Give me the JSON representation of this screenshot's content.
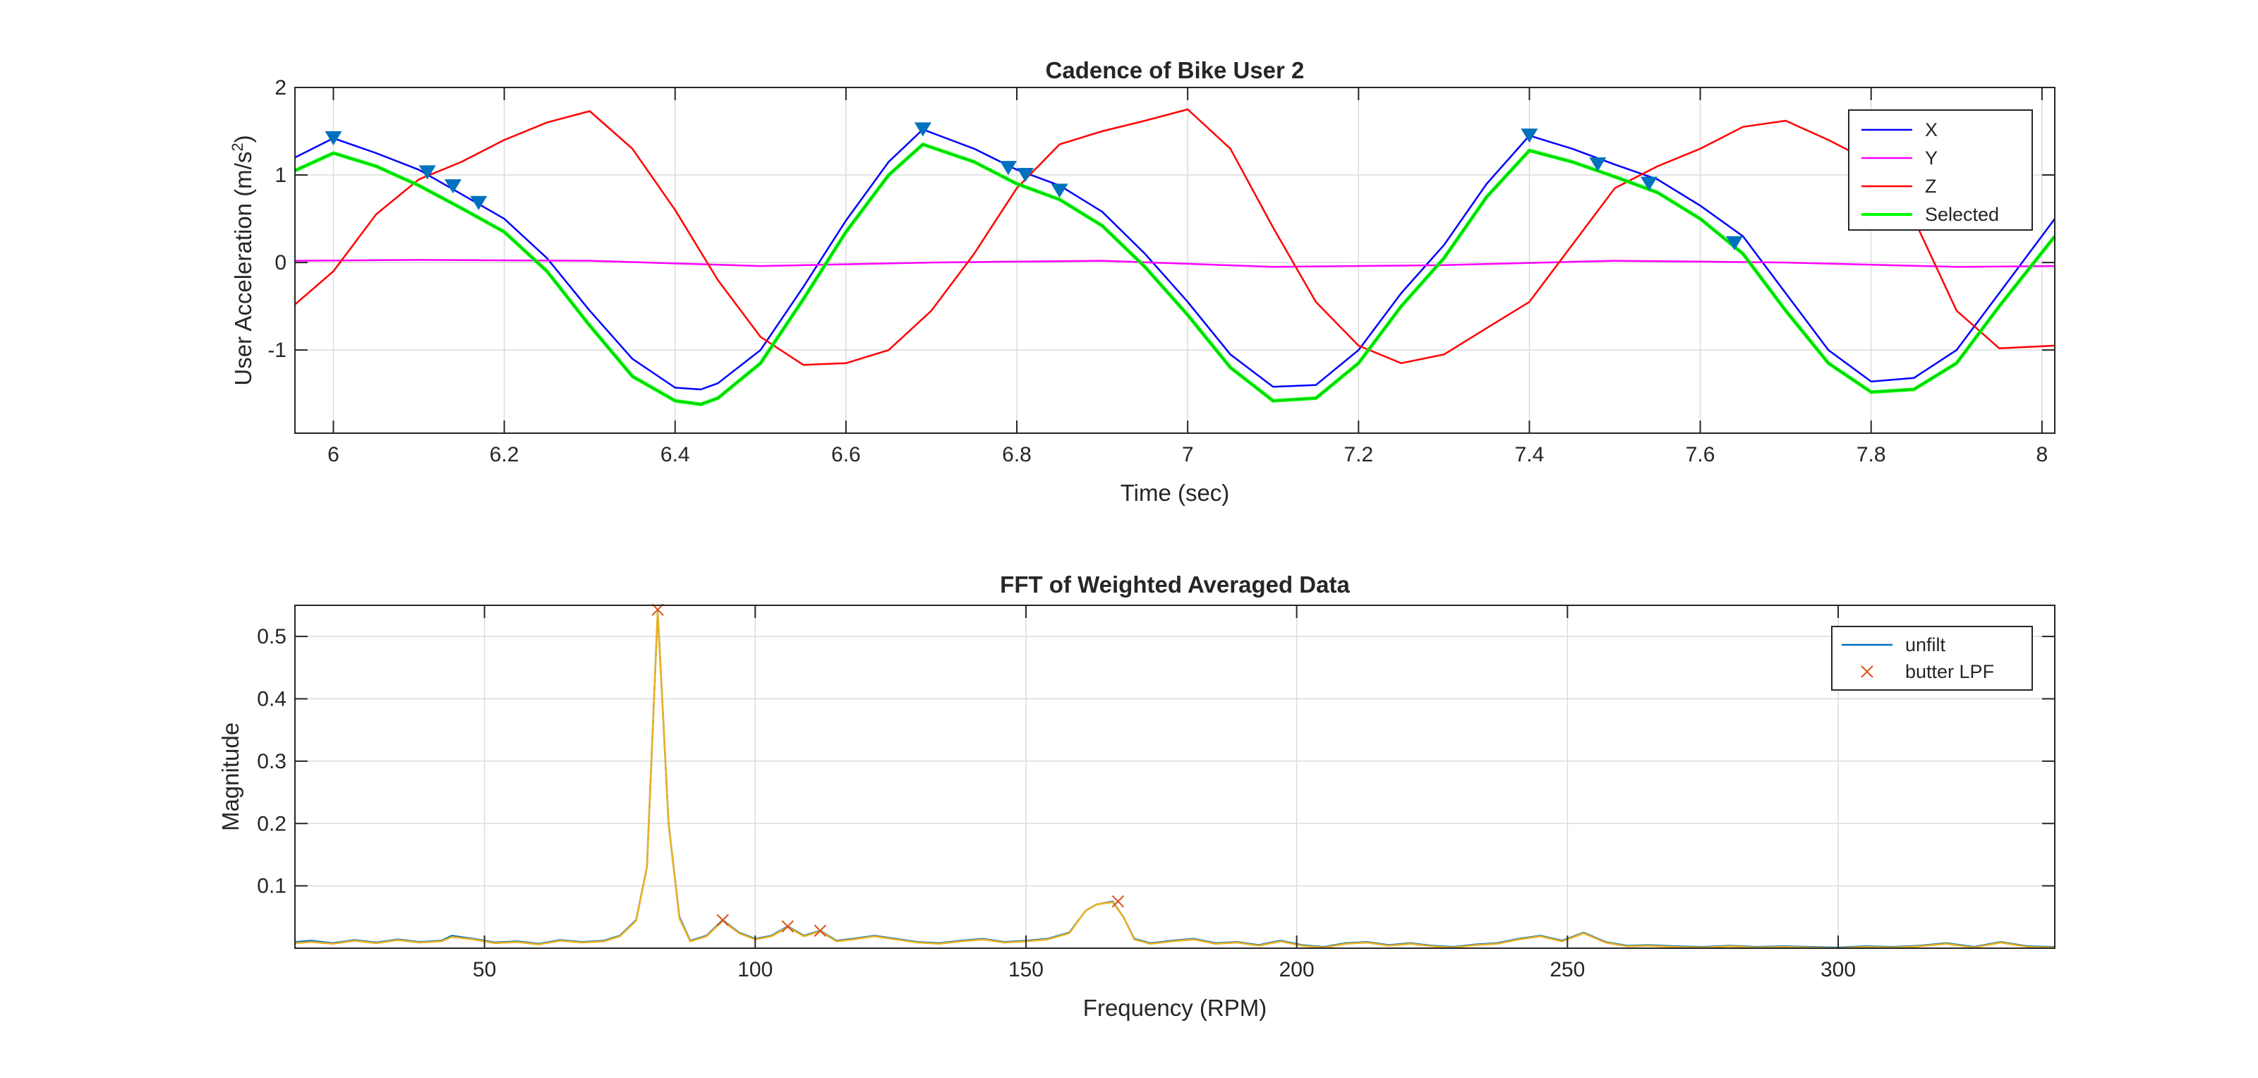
{
  "chart_data": [
    {
      "type": "line",
      "title": "Cadence of Bike User 2",
      "xlabel": "Time (sec)",
      "ylabel_main": "User Acceleration (m/s",
      "ylabel_sup": "2",
      "ylabel_close": ")",
      "xlim": [
        5.955,
        8.015
      ],
      "ylim": [
        -1.95,
        2.0
      ],
      "xticks": [
        6,
        6.2,
        6.4,
        6.6,
        6.8,
        7,
        7.2,
        7.4,
        7.6,
        7.8,
        8
      ],
      "xtick_labels": [
        "6",
        "6.2",
        "6.4",
        "6.6",
        "6.8",
        "7",
        "7.2",
        "7.4",
        "7.6",
        "7.8",
        "8"
      ],
      "yticks": [
        -1,
        0,
        1,
        2
      ],
      "ytick_labels": [
        "-1",
        "0",
        "1",
        "2"
      ],
      "grid": true,
      "legend_position": "top-right",
      "colors": {
        "X": "#0000ff",
        "Y": "#ff00ff",
        "Z": "#ff0000",
        "Selected": "#00ff00",
        "markers": "#0072bd"
      },
      "series": [
        {
          "name": "X",
          "color": "#0000ff",
          "x": [
            5.955,
            6.0,
            6.05,
            6.1,
            6.15,
            6.2,
            6.25,
            6.3,
            6.35,
            6.4,
            6.43,
            6.45,
            6.5,
            6.55,
            6.6,
            6.65,
            6.69,
            6.75,
            6.8,
            6.85,
            6.9,
            6.95,
            7.0,
            7.05,
            7.1,
            7.15,
            7.2,
            7.25,
            7.3,
            7.35,
            7.4,
            7.45,
            7.5,
            7.55,
            7.6,
            7.65,
            7.7,
            7.75,
            7.8,
            7.85,
            7.9,
            7.95,
            8.015
          ],
          "y": [
            1.2,
            1.42,
            1.25,
            1.06,
            0.78,
            0.5,
            0.05,
            -0.55,
            -1.1,
            -1.43,
            -1.45,
            -1.38,
            -1.0,
            -0.28,
            0.48,
            1.15,
            1.52,
            1.3,
            1.06,
            0.88,
            0.58,
            0.1,
            -0.45,
            -1.05,
            -1.42,
            -1.4,
            -1.0,
            -0.35,
            0.2,
            0.9,
            1.45,
            1.3,
            1.12,
            0.95,
            0.65,
            0.3,
            -0.35,
            -1.0,
            -1.36,
            -1.32,
            -1.0,
            -0.35,
            0.5
          ]
        },
        {
          "name": "Y",
          "color": "#ff00ff",
          "x": [
            5.955,
            6.1,
            6.3,
            6.5,
            6.7,
            6.9,
            7.1,
            7.3,
            7.5,
            7.7,
            7.9,
            8.015
          ],
          "y": [
            0.02,
            0.03,
            0.02,
            -0.04,
            0.0,
            0.02,
            -0.05,
            -0.03,
            0.02,
            0.0,
            -0.05,
            -0.04
          ]
        },
        {
          "name": "Z",
          "color": "#ff0000",
          "x": [
            5.955,
            6.0,
            6.05,
            6.1,
            6.15,
            6.2,
            6.25,
            6.3,
            6.35,
            6.4,
            6.45,
            6.5,
            6.55,
            6.6,
            6.65,
            6.7,
            6.75,
            6.8,
            6.85,
            6.9,
            6.95,
            7.0,
            7.05,
            7.1,
            7.15,
            7.2,
            7.25,
            7.3,
            7.35,
            7.4,
            7.45,
            7.5,
            7.55,
            7.6,
            7.65,
            7.7,
            7.75,
            7.8,
            7.85,
            7.9,
            7.95,
            8.015
          ],
          "y": [
            -0.48,
            -0.1,
            0.55,
            0.95,
            1.15,
            1.4,
            1.6,
            1.73,
            1.3,
            0.6,
            -0.2,
            -0.85,
            -1.17,
            -1.15,
            -1.0,
            -0.55,
            0.1,
            0.85,
            1.35,
            1.5,
            1.62,
            1.75,
            1.3,
            0.4,
            -0.45,
            -0.95,
            -1.15,
            -1.05,
            -0.75,
            -0.45,
            0.2,
            0.85,
            1.1,
            1.3,
            1.55,
            1.62,
            1.4,
            1.15,
            0.5,
            -0.55,
            -0.98,
            -0.95
          ]
        },
        {
          "name": "Selected",
          "color": "#00ff00",
          "x": [
            5.955,
            6.0,
            6.05,
            6.1,
            6.15,
            6.2,
            6.25,
            6.3,
            6.35,
            6.4,
            6.43,
            6.45,
            6.5,
            6.55,
            6.6,
            6.65,
            6.69,
            6.75,
            6.8,
            6.85,
            6.9,
            6.95,
            7.0,
            7.05,
            7.1,
            7.15,
            7.2,
            7.25,
            7.3,
            7.35,
            7.4,
            7.45,
            7.5,
            7.55,
            7.6,
            7.65,
            7.7,
            7.75,
            7.8,
            7.85,
            7.9,
            7.95,
            8.015
          ],
          "y": [
            1.05,
            1.25,
            1.1,
            0.88,
            0.62,
            0.35,
            -0.1,
            -0.72,
            -1.3,
            -1.58,
            -1.62,
            -1.55,
            -1.15,
            -0.42,
            0.35,
            1.0,
            1.35,
            1.15,
            0.9,
            0.72,
            0.42,
            -0.05,
            -0.6,
            -1.2,
            -1.58,
            -1.55,
            -1.15,
            -0.5,
            0.05,
            0.75,
            1.28,
            1.15,
            0.98,
            0.8,
            0.5,
            0.1,
            -0.55,
            -1.15,
            -1.48,
            -1.45,
            -1.15,
            -0.5,
            0.3
          ]
        }
      ],
      "markers": {
        "color": "#0072bd",
        "x": [
          6.0,
          6.11,
          6.14,
          6.17,
          6.69,
          6.79,
          6.81,
          6.85,
          7.4,
          7.48,
          7.54,
          7.64
        ],
        "y": [
          1.42,
          1.03,
          0.87,
          0.68,
          1.52,
          1.08,
          1.0,
          0.82,
          1.45,
          1.12,
          0.9,
          0.22
        ]
      }
    },
    {
      "type": "line",
      "title": "FFT of Weighted Averaged Data",
      "xlabel": "Frequency (RPM)",
      "ylabel": "Magnitude",
      "xlim": [
        15,
        340
      ],
      "ylim": [
        0,
        0.55
      ],
      "xticks": [
        50,
        100,
        150,
        200,
        250,
        300
      ],
      "xtick_labels": [
        "50",
        "100",
        "150",
        "200",
        "250",
        "300"
      ],
      "yticks": [
        0.1,
        0.2,
        0.3,
        0.4,
        0.5
      ],
      "ytick_labels": [
        "0.1",
        "0.2",
        "0.3",
        "0.4",
        "0.5"
      ],
      "grid": true,
      "legend_position": "top-right",
      "series": [
        {
          "name": "unfilt",
          "color": "#0072bd",
          "x": [
            15,
            18,
            22,
            26,
            30,
            34,
            38,
            42,
            44,
            48,
            52,
            56,
            60,
            64,
            68,
            72,
            75,
            78,
            80,
            82,
            84,
            86,
            88,
            91,
            94,
            97,
            100,
            103,
            106,
            109,
            112,
            115,
            118,
            122,
            126,
            130,
            134,
            138,
            142,
            146,
            150,
            154,
            158,
            161,
            163,
            166,
            168,
            170,
            173,
            177,
            181,
            185,
            189,
            193,
            197,
            201,
            205,
            209,
            213,
            217,
            221,
            225,
            229,
            233,
            237,
            241,
            245,
            249,
            253,
            257,
            261,
            265,
            270,
            275,
            280,
            285,
            290,
            295,
            300,
            305,
            310,
            315,
            320,
            325,
            330,
            335,
            340
          ],
          "y": [
            0.01,
            0.012,
            0.008,
            0.013,
            0.009,
            0.014,
            0.01,
            0.012,
            0.02,
            0.015,
            0.009,
            0.011,
            0.007,
            0.013,
            0.01,
            0.012,
            0.02,
            0.045,
            0.13,
            0.54,
            0.2,
            0.05,
            0.012,
            0.02,
            0.045,
            0.025,
            0.015,
            0.02,
            0.035,
            0.02,
            0.028,
            0.012,
            0.015,
            0.02,
            0.015,
            0.01,
            0.008,
            0.012,
            0.015,
            0.01,
            0.012,
            0.015,
            0.025,
            0.06,
            0.07,
            0.075,
            0.05,
            0.015,
            0.008,
            0.012,
            0.015,
            0.008,
            0.01,
            0.005,
            0.012,
            0.005,
            0.002,
            0.008,
            0.01,
            0.005,
            0.008,
            0.004,
            0.002,
            0.006,
            0.008,
            0.015,
            0.02,
            0.012,
            0.025,
            0.01,
            0.004,
            0.005,
            0.003,
            0.002,
            0.004,
            0.002,
            0.003,
            0.002,
            0.001,
            0.003,
            0.002,
            0.004,
            0.008,
            0.002,
            0.01,
            0.003,
            0.002
          ]
        },
        {
          "name": "butter LPF",
          "color": "#edb120",
          "marker": "x",
          "marker_color": "#d95319",
          "x": [
            15,
            18,
            22,
            26,
            30,
            34,
            38,
            42,
            44,
            48,
            52,
            56,
            60,
            64,
            68,
            72,
            75,
            78,
            80,
            82,
            84,
            86,
            88,
            91,
            94,
            97,
            100,
            103,
            106,
            109,
            112,
            115,
            118,
            122,
            126,
            130,
            134,
            138,
            142,
            146,
            150,
            154,
            158,
            161,
            163,
            166,
            168,
            170,
            173,
            177,
            181,
            185,
            189,
            193,
            197,
            201,
            205,
            209,
            213,
            217,
            221,
            225,
            229,
            233,
            237,
            241,
            245,
            249,
            253,
            257,
            261,
            265,
            270,
            275,
            280,
            285,
            290,
            295,
            300,
            305,
            310,
            315,
            320,
            325,
            330,
            335,
            340
          ],
          "y": [
            0.008,
            0.01,
            0.007,
            0.012,
            0.008,
            0.013,
            0.009,
            0.011,
            0.018,
            0.014,
            0.008,
            0.01,
            0.006,
            0.012,
            0.009,
            0.011,
            0.019,
            0.044,
            0.13,
            0.54,
            0.2,
            0.048,
            0.011,
            0.019,
            0.044,
            0.024,
            0.014,
            0.019,
            0.034,
            0.019,
            0.027,
            0.011,
            0.014,
            0.019,
            0.014,
            0.009,
            0.007,
            0.011,
            0.014,
            0.009,
            0.011,
            0.014,
            0.024,
            0.06,
            0.07,
            0.074,
            0.05,
            0.014,
            0.007,
            0.011,
            0.014,
            0.007,
            0.009,
            0.004,
            0.011,
            0.004,
            0.001,
            0.007,
            0.009,
            0.004,
            0.007,
            0.003,
            0.001,
            0.005,
            0.007,
            0.014,
            0.019,
            0.011,
            0.024,
            0.009,
            0.003,
            0.004,
            0.002,
            0.001,
            0.003,
            0.001,
            0.002,
            0.001,
            0.0,
            0.002,
            0.001,
            0.003,
            0.007,
            0.001,
            0.009,
            0.002,
            0.001
          ]
        }
      ],
      "peak_markers": {
        "color": "#d95319",
        "x": [
          82,
          94,
          106,
          112,
          167
        ],
        "y": [
          0.543,
          0.045,
          0.035,
          0.028,
          0.075
        ]
      }
    }
  ]
}
